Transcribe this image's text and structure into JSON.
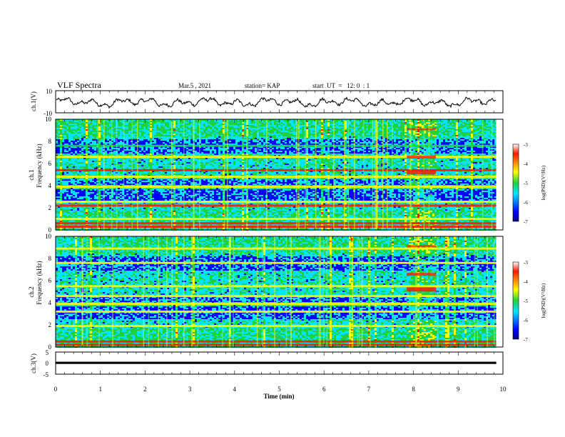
{
  "header": {
    "title": "VLF Spectra",
    "date": "Mar.5 , 2021",
    "station": "station= KAP",
    "start": "start  UT  =   12: 0  : 1"
  },
  "chart_data": [
    {
      "type": "line",
      "panel": "ch1-waveform",
      "ylabel": "ch.1(V)",
      "ylim": [
        -10,
        10
      ],
      "yticks": [
        "10",
        "-10"
      ],
      "xlim": [
        0,
        10
      ],
      "data_end_min": 9.85,
      "mean": -0.5,
      "amplitude": 4.5,
      "color": "#000000"
    },
    {
      "type": "heatmap",
      "panel": "ch1-spectrogram",
      "ylabel": "ch.1",
      "ylabel2": "Frequency  (kHz)",
      "ylim": [
        0,
        10
      ],
      "yticks": [
        "0",
        "2",
        "4",
        "6",
        "8",
        "10"
      ],
      "xlim": [
        0,
        10
      ],
      "data_end_min": 9.85,
      "event_window_min": [
        7.85,
        8.5
      ],
      "colorbar": {
        "label": "log(PSD)(V²/Hz)",
        "range": [
          -7,
          -3
        ],
        "ticks": [
          "-3",
          "-4",
          "-5",
          "-6",
          "-7"
        ]
      },
      "bands": [
        {
          "f": 0.3,
          "level": 5
        },
        {
          "f": 0.6,
          "level": 4.5
        },
        {
          "f": 1.0,
          "level": 3.5
        },
        {
          "f": 2.2,
          "level": 5
        },
        {
          "f": 2.55,
          "level": 4
        },
        {
          "f": 3.9,
          "level": 4
        },
        {
          "f": 4.8,
          "level": 4
        },
        {
          "f": 5.4,
          "level": 4.5
        },
        {
          "f": 6.6,
          "level": 3.8
        },
        {
          "f": 7.6,
          "level": 3.2
        }
      ]
    },
    {
      "type": "heatmap",
      "panel": "ch2-spectrogram",
      "ylabel": "ch.2",
      "ylabel2": "Frequency  (kHz)",
      "ylim": [
        0,
        10
      ],
      "yticks": [
        "0",
        "2",
        "4",
        "6",
        "8",
        "10"
      ],
      "xlim": [
        0,
        10
      ],
      "data_end_min": 9.85,
      "event_window_min": [
        7.85,
        8.5
      ],
      "colorbar": {
        "label": "log(PSD)(V²/Hz)",
        "range": [
          -7,
          -3
        ],
        "ticks": [
          "-3",
          "-4",
          "-5",
          "-6",
          "-7"
        ]
      },
      "bands": [
        {
          "f": 0.2,
          "level": 5
        },
        {
          "f": 0.5,
          "level": 4.5
        },
        {
          "f": 1.9,
          "level": 4
        },
        {
          "f": 3.2,
          "level": 4
        },
        {
          "f": 3.9,
          "level": 4
        },
        {
          "f": 4.6,
          "level": 4
        },
        {
          "f": 5.5,
          "level": 3.5
        },
        {
          "f": 7.6,
          "level": 3.5
        },
        {
          "f": 8.9,
          "level": 3.5
        }
      ]
    },
    {
      "type": "line",
      "panel": "ch3-waveform",
      "ylabel": "ch.3(V)",
      "ylim": [
        -5,
        5
      ],
      "yticks": [
        "5",
        "0",
        "-5"
      ],
      "xlim": [
        0,
        10
      ],
      "xlabel": "Time  (min)",
      "xticks": [
        "0",
        "1",
        "2",
        "3",
        "4",
        "5",
        "6",
        "7",
        "8",
        "9",
        "10"
      ],
      "data_end_min": 9.85,
      "value_band": [
        -0.4,
        0.6
      ],
      "color": "#000000"
    }
  ]
}
